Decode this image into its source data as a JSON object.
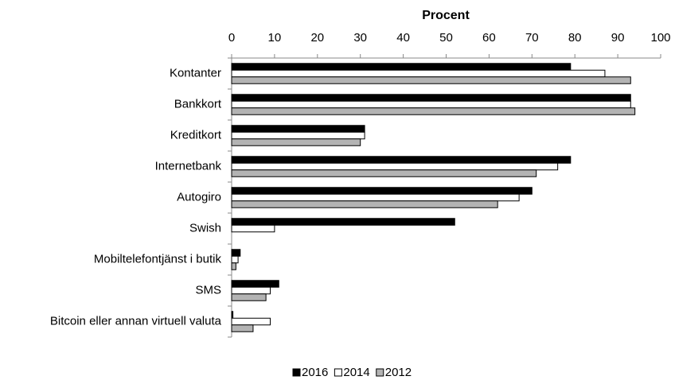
{
  "chart_data": {
    "type": "hbar",
    "title": "Procent",
    "categories": [
      "Kontanter",
      "Bankkort",
      "Kreditkort",
      "Internetbank",
      "Autogiro",
      "Swish",
      "Mobiltelefontjänst i butik",
      "SMS",
      "Bitcoin eller annan virtuell valuta"
    ],
    "series": [
      {
        "name": "2016",
        "color": "#000000",
        "values": [
          79,
          93,
          31,
          79,
          70,
          52,
          2,
          11,
          0.3
        ]
      },
      {
        "name": "2014",
        "color": "#ffffff",
        "values": [
          87,
          93,
          31,
          76,
          67,
          10,
          1.5,
          9,
          9
        ]
      },
      {
        "name": "2012",
        "color": "#b3b3b3",
        "values": [
          93,
          94,
          30,
          71,
          62,
          null,
          1,
          8,
          5
        ]
      }
    ],
    "xlim": [
      0,
      100
    ],
    "xticks": [
      0,
      10,
      20,
      30,
      40,
      50,
      60,
      70,
      80,
      90,
      100
    ],
    "legend": "bottom"
  }
}
